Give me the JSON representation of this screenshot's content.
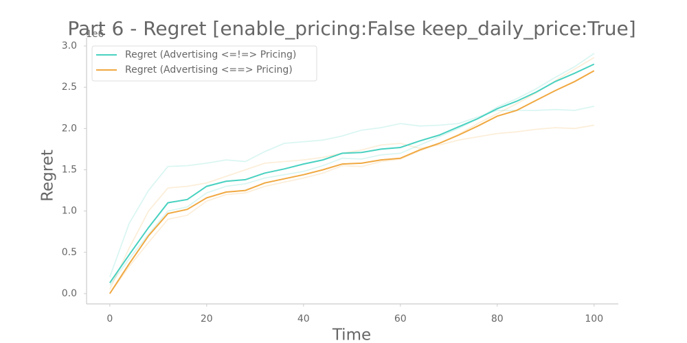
{
  "chart_data": {
    "type": "line",
    "title": "Part 6 - Regret [enable_pricing:False keep_daily_price:True]",
    "x_label": "Time",
    "y_label": "Regret",
    "y_offset_label": "1e6",
    "x": [
      0,
      4,
      8,
      12,
      16,
      20,
      24,
      28,
      32,
      36,
      40,
      44,
      48,
      52,
      56,
      60,
      64,
      68,
      72,
      76,
      80,
      84,
      88,
      92,
      96,
      100
    ],
    "xlim": [
      -4.8,
      105
    ],
    "xticks": [
      0,
      20,
      40,
      60,
      80,
      100
    ],
    "ylim": [
      -0.125,
      3.1
    ],
    "yticks": [
      {
        "value": 0,
        "label": "0.0"
      },
      0.5,
      {
        "value": 1,
        "label": "1.0"
      },
      1.5,
      {
        "value": 2,
        "label": "2.0"
      },
      2.5,
      {
        "value": 3,
        "label": "3.0"
      }
    ],
    "legend_position": "upper left",
    "series": [
      {
        "name": "Regret (Advertising <=!=> Pricing)",
        "color": "#48d1c0",
        "values": [
          0.13,
          0.47,
          0.8,
          1.1,
          1.14,
          1.3,
          1.36,
          1.38,
          1.46,
          1.51,
          1.57,
          1.62,
          1.7,
          1.71,
          1.75,
          1.77,
          1.85,
          1.92,
          2.02,
          2.12,
          2.24,
          2.33,
          2.44,
          2.57,
          2.67,
          2.78
        ],
        "runs": [
          [
            0.2,
            0.85,
            1.25,
            1.54,
            1.55,
            1.58,
            1.62,
            1.6,
            1.72,
            1.82,
            1.84,
            1.86,
            1.91,
            1.98,
            2.01,
            2.06,
            2.03,
            2.04,
            2.06,
            2.14,
            2.22,
            2.22,
            2.22,
            2.23,
            2.22,
            2.27
          ],
          [
            0.1,
            0.42,
            0.72,
            1.0,
            1.05,
            1.22,
            1.3,
            1.33,
            1.4,
            1.44,
            1.48,
            1.55,
            1.64,
            1.63,
            1.68,
            1.7,
            1.8,
            1.9,
            2.0,
            2.12,
            2.26,
            2.36,
            2.48,
            2.62,
            2.75,
            2.91
          ]
        ]
      },
      {
        "name": "Regret (Advertising <==> Pricing)",
        "color": "#f0a840",
        "values": [
          0.0,
          0.36,
          0.7,
          0.97,
          1.02,
          1.16,
          1.23,
          1.25,
          1.34,
          1.39,
          1.44,
          1.5,
          1.57,
          1.58,
          1.62,
          1.64,
          1.74,
          1.82,
          1.92,
          2.03,
          2.15,
          2.22,
          2.34,
          2.46,
          2.57,
          2.7
        ],
        "runs": [
          [
            0.05,
            0.55,
            1.0,
            1.28,
            1.3,
            1.34,
            1.42,
            1.5,
            1.58,
            1.6,
            1.62,
            1.65,
            1.7,
            1.74,
            1.8,
            1.82,
            1.76,
            1.8,
            1.86,
            1.9,
            1.94,
            1.96,
            1.99,
            2.01,
            2.0,
            2.04
          ],
          [
            0.0,
            0.33,
            0.62,
            0.9,
            0.95,
            1.12,
            1.2,
            1.22,
            1.3,
            1.35,
            1.4,
            1.46,
            1.55,
            1.54,
            1.6,
            1.63,
            1.73,
            1.82,
            1.93,
            2.06,
            2.18,
            2.3,
            2.43,
            2.58,
            2.72,
            2.86
          ]
        ]
      }
    ]
  }
}
